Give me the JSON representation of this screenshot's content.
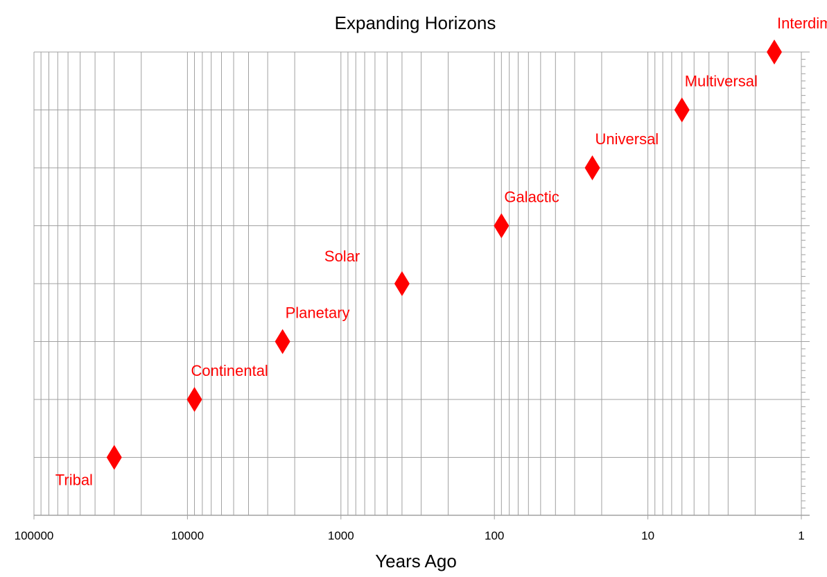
{
  "chart_data": {
    "type": "scatter",
    "title": "Expanding Horizons",
    "xlabel": "Years Ago",
    "ylabel": "",
    "x_scale": "log",
    "x_reversed": true,
    "xlim": [
      100000,
      1
    ],
    "ylim": [
      0,
      8
    ],
    "grid": true,
    "legend": "none",
    "marker": "diamond",
    "marker_color": "#ff0000",
    "label_color": "#ff0000",
    "grid_color": "#a0a0a0",
    "x_ticks": [
      {
        "value": 100000,
        "label": "100000"
      },
      {
        "value": 10000,
        "label": "10000"
      },
      {
        "value": 1000,
        "label": "1000"
      },
      {
        "value": 100,
        "label": "100"
      },
      {
        "value": 10,
        "label": "10"
      },
      {
        "value": 1,
        "label": "1"
      }
    ],
    "points": [
      {
        "label": "Tribal",
        "x": 30000,
        "y": 1,
        "label_pos": "below-left"
      },
      {
        "label": "Continental",
        "x": 9000,
        "y": 2,
        "label_pos": "above"
      },
      {
        "label": "Planetary",
        "x": 2400,
        "y": 3,
        "label_pos": "above-right"
      },
      {
        "label": "Solar",
        "x": 400,
        "y": 4,
        "label_pos": "above-left"
      },
      {
        "label": "Galactic",
        "x": 90,
        "y": 5,
        "label_pos": "above-right"
      },
      {
        "label": "Universal",
        "x": 23,
        "y": 6,
        "label_pos": "above-right"
      },
      {
        "label": "Multiversal",
        "x": 6,
        "y": 7,
        "label_pos": "above-right"
      },
      {
        "label": "Interdimensional",
        "x": 1.5,
        "y": 8,
        "label_pos": "above-right"
      }
    ]
  }
}
